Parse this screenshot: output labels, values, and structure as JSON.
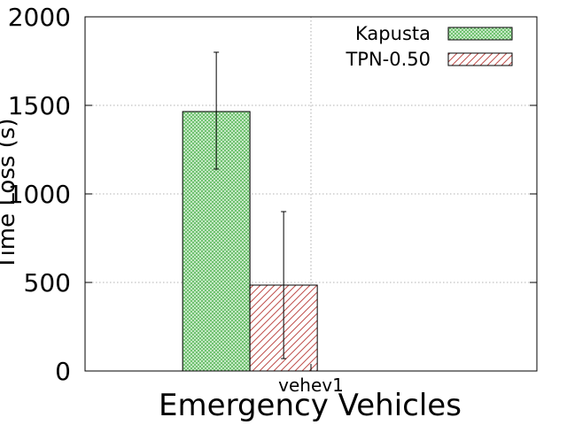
{
  "chart_data": {
    "type": "bar",
    "categories": [
      "vehev1"
    ],
    "series": [
      {
        "name": "Kapusta",
        "values": [
          1465
        ],
        "error_low": [
          1140
        ],
        "error_high": [
          1800
        ],
        "color": "#6dc46d",
        "pattern": "crosshatch"
      },
      {
        "name": "TPN-0.50",
        "values": [
          485
        ],
        "error_low": [
          70
        ],
        "error_high": [
          900
        ],
        "color": "#c0504d",
        "pattern": "diagonal"
      }
    ],
    "xlabel": "Emergency Vehicles",
    "ylabel": "Time Loss (s)",
    "ylim": [
      0,
      2000
    ],
    "yticks": [
      0,
      500,
      1000,
      1500,
      2000
    ],
    "grid": true,
    "legend_position": "top-right"
  }
}
